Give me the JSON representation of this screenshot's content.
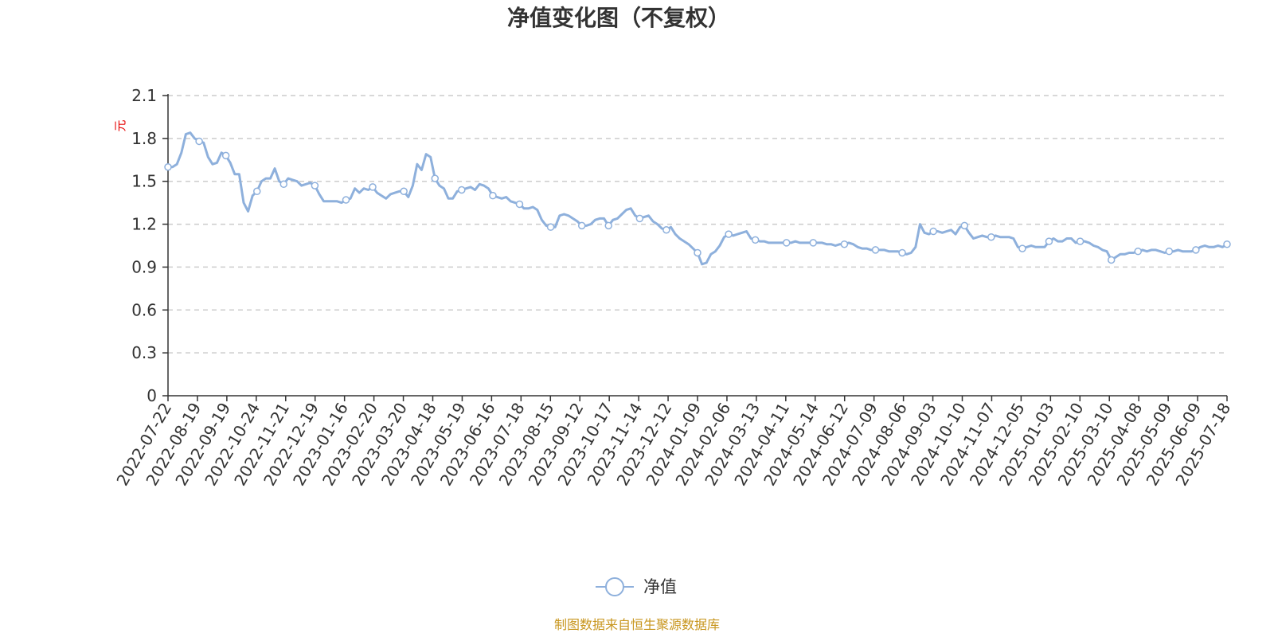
{
  "chart_data": {
    "type": "line",
    "title": "净值变化图（不复权）",
    "ylabel": "元",
    "ylim": [
      0,
      2.1
    ],
    "yticks": [
      "0",
      "0.3",
      "0.6",
      "0.9",
      "1.2",
      "1.5",
      "1.8",
      "2.1"
    ],
    "grid": true,
    "legend_position": "bottom-center",
    "xticks": [
      "2022-07-22",
      "2022-08-19",
      "2022-09-19",
      "2022-10-24",
      "2022-11-21",
      "2022-12-19",
      "2023-01-16",
      "2023-02-20",
      "2023-03-20",
      "2023-04-18",
      "2023-05-19",
      "2023-06-16",
      "2023-07-18",
      "2023-08-15",
      "2023-09-12",
      "2023-10-17",
      "2023-11-14",
      "2023-12-12",
      "2024-01-09",
      "2024-02-06",
      "2024-03-13",
      "2024-04-11",
      "2024-05-14",
      "2024-06-12",
      "2024-07-09",
      "2024-08-06",
      "2024-09-03",
      "2024-10-10",
      "2024-11-07",
      "2024-12-05",
      "2025-01-03",
      "2025-02-10",
      "2025-03-10",
      "2025-04-08",
      "2025-05-09",
      "2025-06-09",
      "2025-07-18"
    ],
    "series": [
      {
        "name": "净值",
        "color": "#8eb0dc",
        "values": [
          1.6,
          1.6,
          1.62,
          1.7,
          1.83,
          1.84,
          1.8,
          1.78,
          1.77,
          1.67,
          1.62,
          1.63,
          1.7,
          1.68,
          1.63,
          1.55,
          1.55,
          1.35,
          1.29,
          1.4,
          1.43,
          1.5,
          1.52,
          1.52,
          1.59,
          1.5,
          1.48,
          1.52,
          1.51,
          1.5,
          1.47,
          1.48,
          1.49,
          1.47,
          1.41,
          1.36,
          1.36,
          1.36,
          1.36,
          1.35,
          1.37,
          1.38,
          1.45,
          1.42,
          1.45,
          1.44,
          1.46,
          1.42,
          1.4,
          1.38,
          1.41,
          1.42,
          1.43,
          1.43,
          1.39,
          1.47,
          1.62,
          1.58,
          1.69,
          1.67,
          1.52,
          1.47,
          1.45,
          1.38,
          1.38,
          1.43,
          1.44,
          1.45,
          1.46,
          1.44,
          1.48,
          1.47,
          1.45,
          1.4,
          1.39,
          1.38,
          1.39,
          1.36,
          1.35,
          1.34,
          1.31,
          1.31,
          1.32,
          1.3,
          1.23,
          1.19,
          1.18,
          1.18,
          1.26,
          1.27,
          1.26,
          1.24,
          1.22,
          1.19,
          1.19,
          1.2,
          1.23,
          1.24,
          1.24,
          1.19,
          1.23,
          1.24,
          1.27,
          1.3,
          1.31,
          1.26,
          1.24,
          1.25,
          1.26,
          1.22,
          1.2,
          1.17,
          1.16,
          1.18,
          1.13,
          1.1,
          1.08,
          1.06,
          1.03,
          1.0,
          0.92,
          0.93,
          0.99,
          1.01,
          1.05,
          1.11,
          1.13,
          1.12,
          1.13,
          1.14,
          1.15,
          1.1,
          1.09,
          1.08,
          1.08,
          1.07,
          1.07,
          1.07,
          1.07,
          1.07,
          1.07,
          1.08,
          1.07,
          1.07,
          1.07,
          1.07,
          1.07,
          1.07,
          1.06,
          1.06,
          1.05,
          1.06,
          1.06,
          1.07,
          1.06,
          1.04,
          1.03,
          1.03,
          1.02,
          1.02,
          1.02,
          1.02,
          1.01,
          1.01,
          1.01,
          1.0,
          0.99,
          1.0,
          1.04,
          1.2,
          1.14,
          1.13,
          1.15,
          1.15,
          1.14,
          1.15,
          1.16,
          1.13,
          1.18,
          1.19,
          1.14,
          1.1,
          1.11,
          1.12,
          1.11,
          1.11,
          1.12,
          1.11,
          1.11,
          1.11,
          1.1,
          1.04,
          1.03,
          1.04,
          1.05,
          1.04,
          1.04,
          1.04,
          1.08,
          1.1,
          1.08,
          1.08,
          1.1,
          1.1,
          1.07,
          1.08,
          1.08,
          1.07,
          1.05,
          1.04,
          1.02,
          1.01,
          0.95,
          0.97,
          0.99,
          0.99,
          1.0,
          1.0,
          1.01,
          1.02,
          1.01,
          1.02,
          1.02,
          1.01,
          1.0,
          1.01,
          1.01,
          1.02,
          1.01,
          1.01,
          1.01,
          1.02,
          1.04,
          1.05,
          1.04,
          1.04,
          1.05,
          1.04,
          1.06
        ]
      }
    ],
    "source": "制图数据来自恒生聚源数据库"
  }
}
